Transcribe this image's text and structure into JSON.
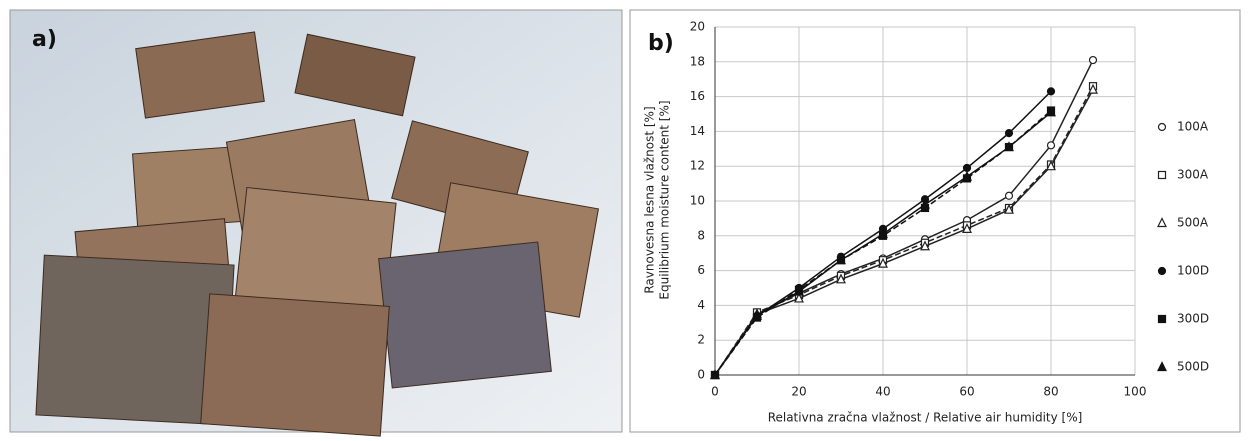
{
  "panel_a": {
    "label": "a)"
  },
  "chart_data": {
    "type": "line",
    "panel_label": "b)",
    "y_label_lines": [
      "Ravnovesna lesna vlažnost [%]",
      "Equilibrium moisture content [%]"
    ],
    "x_label": "Relativna zračna vlažnost / Relative air humidity [%]",
    "x": [
      0,
      10,
      20,
      30,
      40,
      50,
      60,
      70,
      80,
      90
    ],
    "xlim": [
      0,
      100
    ],
    "xticks": [
      0,
      20,
      40,
      60,
      80,
      100
    ],
    "ylim": [
      0,
      20
    ],
    "yticks": [
      0,
      2,
      4,
      6,
      8,
      10,
      12,
      14,
      16,
      18,
      20
    ],
    "grid": true,
    "series": [
      {
        "name": "100A",
        "color": "#222222",
        "marker": "circle",
        "filled": false,
        "dashed": false,
        "values": [
          0,
          3.5,
          4.7,
          5.8,
          6.7,
          7.8,
          8.9,
          10.3,
          13.2,
          18.1
        ]
      },
      {
        "name": "300A",
        "color": "#222222",
        "marker": "square",
        "filled": false,
        "dashed": true,
        "values": [
          0,
          3.6,
          4.6,
          5.7,
          6.6,
          7.6,
          8.6,
          9.6,
          12.1,
          16.6
        ]
      },
      {
        "name": "500A",
        "color": "#222222",
        "marker": "triangle",
        "filled": false,
        "dashed": false,
        "values": [
          0,
          3.5,
          4.4,
          5.5,
          6.4,
          7.4,
          8.4,
          9.5,
          12.0,
          16.4
        ]
      },
      {
        "name": "100D",
        "color": "#111111",
        "marker": "circle",
        "filled": true,
        "dashed": false,
        "values": [
          0,
          3.4,
          5.0,
          6.8,
          8.4,
          10.1,
          11.9,
          13.9,
          16.3,
          null
        ]
      },
      {
        "name": "300D",
        "color": "#111111",
        "marker": "square",
        "filled": true,
        "dashed": true,
        "values": [
          0,
          3.3,
          4.9,
          6.6,
          8.0,
          9.6,
          11.3,
          13.1,
          15.2,
          null
        ]
      },
      {
        "name": "500D",
        "color": "#111111",
        "marker": "triangle",
        "filled": true,
        "dashed": false,
        "values": [
          0,
          3.4,
          4.8,
          6.6,
          8.1,
          9.8,
          11.4,
          13.1,
          15.1,
          null
        ]
      }
    ]
  }
}
